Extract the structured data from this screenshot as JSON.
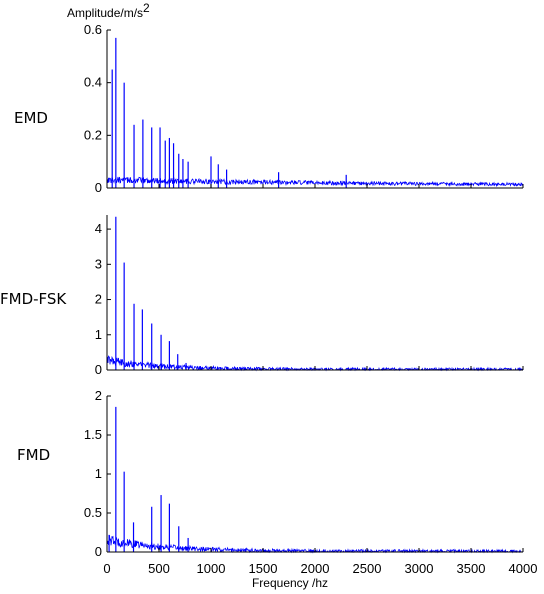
{
  "figure": {
    "ylabel_prefix": "Amplitude/m/s",
    "ylabel_exponent": "2",
    "xlabel": "Frequency /hz"
  },
  "chart_data": [
    {
      "type": "line",
      "method_label": "EMD",
      "line_color": "#0000ff",
      "xlim": [
        0,
        4000
      ],
      "ylim": [
        0,
        0.6
      ],
      "x_ticks": [],
      "y_ticks": [
        0,
        0.2,
        0.4,
        0.6
      ],
      "y_tick_labels": [
        "0",
        "0.2",
        "0.4",
        "0.6"
      ],
      "noise": {
        "base": 0.022,
        "decay": 2800,
        "floor": 0.008,
        "jitter": 0.018
      },
      "peaks": [
        {
          "x": 50,
          "y": 0.45
        },
        {
          "x": 85,
          "y": 0.57
        },
        {
          "x": 165,
          "y": 0.4
        },
        {
          "x": 260,
          "y": 0.24
        },
        {
          "x": 345,
          "y": 0.26
        },
        {
          "x": 430,
          "y": 0.23
        },
        {
          "x": 510,
          "y": 0.23
        },
        {
          "x": 560,
          "y": 0.18
        },
        {
          "x": 600,
          "y": 0.19
        },
        {
          "x": 640,
          "y": 0.17
        },
        {
          "x": 690,
          "y": 0.13
        },
        {
          "x": 730,
          "y": 0.11
        },
        {
          "x": 780,
          "y": 0.1
        },
        {
          "x": 1000,
          "y": 0.12
        },
        {
          "x": 1070,
          "y": 0.09
        },
        {
          "x": 1150,
          "y": 0.07
        },
        {
          "x": 1650,
          "y": 0.06
        },
        {
          "x": 2300,
          "y": 0.05
        }
      ]
    },
    {
      "type": "line",
      "method_label": "FMD-FSK",
      "line_color": "#0000ff",
      "xlim": [
        0,
        4000
      ],
      "ylim": [
        0,
        4.4
      ],
      "x_ticks": [],
      "y_ticks": [
        0,
        1,
        2,
        3,
        4
      ],
      "y_tick_labels": [
        "0",
        "1",
        "2",
        "3",
        "4"
      ],
      "noise": {
        "base": 0.25,
        "decay": 500,
        "floor": 0.015,
        "jitter": 0.2
      },
      "peaks": [
        {
          "x": 85,
          "y": 4.35
        },
        {
          "x": 165,
          "y": 3.05
        },
        {
          "x": 260,
          "y": 1.88
        },
        {
          "x": 340,
          "y": 1.72
        },
        {
          "x": 430,
          "y": 1.32
        },
        {
          "x": 520,
          "y": 1.0
        },
        {
          "x": 600,
          "y": 0.82
        },
        {
          "x": 680,
          "y": 0.45
        },
        {
          "x": 760,
          "y": 0.2
        },
        {
          "x": 1000,
          "y": 0.1
        }
      ]
    },
    {
      "type": "line",
      "method_label": "FMD",
      "line_color": "#0000ff",
      "xlim": [
        0,
        4000
      ],
      "ylim": [
        0,
        2
      ],
      "x_ticks": [
        0,
        500,
        1000,
        1500,
        2000,
        2500,
        3000,
        3500,
        4000
      ],
      "x_tick_labels": [
        "0",
        "500",
        "1000",
        "1500",
        "2000",
        "2500",
        "3000",
        "3500",
        "4000"
      ],
      "y_ticks": [
        0,
        0.5,
        1,
        1.5,
        2
      ],
      "y_tick_labels": [
        "0",
        "0.5",
        "1",
        "1.5",
        "2"
      ],
      "noise": {
        "base": 0.14,
        "decay": 550,
        "floor": 0.008,
        "jitter": 0.1
      },
      "peaks": [
        {
          "x": 20,
          "y": 0.22
        },
        {
          "x": 85,
          "y": 1.86
        },
        {
          "x": 165,
          "y": 1.03
        },
        {
          "x": 255,
          "y": 0.38
        },
        {
          "x": 430,
          "y": 0.58
        },
        {
          "x": 520,
          "y": 0.73
        },
        {
          "x": 600,
          "y": 0.62
        },
        {
          "x": 690,
          "y": 0.33
        },
        {
          "x": 780,
          "y": 0.18
        }
      ]
    }
  ]
}
